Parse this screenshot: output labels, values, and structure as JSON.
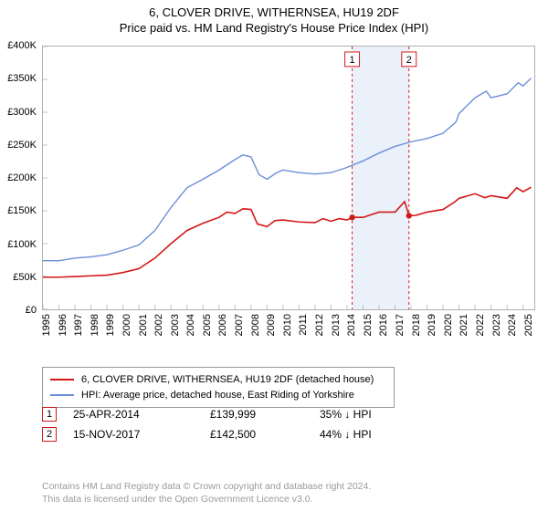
{
  "title": {
    "line1": "6, CLOVER DRIVE, WITHERNSEA, HU19 2DF",
    "line2": "Price paid vs. HM Land Registry's House Price Index (HPI)"
  },
  "chart": {
    "type": "line",
    "background_color": "#ffffff",
    "axis_color": "#b0b0b0",
    "tick_color": "#c0c0c0",
    "xlim": [
      1995,
      2025.7
    ],
    "ylim": [
      0,
      400000
    ],
    "ytick_step": 50000,
    "yticks": [
      "£0",
      "£50K",
      "£100K",
      "£150K",
      "£200K",
      "£250K",
      "£300K",
      "£350K",
      "£400K"
    ],
    "xticks": [
      "1995",
      "1996",
      "1997",
      "1998",
      "1999",
      "2000",
      "2001",
      "2002",
      "2003",
      "2004",
      "2005",
      "2006",
      "2007",
      "2008",
      "2009",
      "2010",
      "2011",
      "2012",
      "2013",
      "2014",
      "2015",
      "2016",
      "2017",
      "2018",
      "2019",
      "2020",
      "2021",
      "2022",
      "2023",
      "2024",
      "2025"
    ],
    "highlight_band": {
      "from": 2014.32,
      "to": 2017.87,
      "fill": "#eaf1fb"
    },
    "sale_markers": [
      {
        "num": "1",
        "x": 2014.32,
        "y": 139999,
        "color": "#d31717"
      },
      {
        "num": "2",
        "x": 2017.87,
        "y": 142500,
        "color": "#d31717"
      }
    ],
    "marker_line_dash": "3,3",
    "marker_label_box_border": "#d31717",
    "series": [
      {
        "name": "property",
        "color": "#d31717",
        "width": 1.6,
        "data": [
          [
            1995,
            49000
          ],
          [
            1996,
            49000
          ],
          [
            1997,
            50000
          ],
          [
            1998,
            51000
          ],
          [
            1999,
            52000
          ],
          [
            2000,
            56000
          ],
          [
            2001,
            62000
          ],
          [
            2002,
            78000
          ],
          [
            2003,
            100000
          ],
          [
            2004,
            120000
          ],
          [
            2005,
            131000
          ],
          [
            2006,
            140000
          ],
          [
            2006.5,
            148000
          ],
          [
            2007,
            146000
          ],
          [
            2007.5,
            153000
          ],
          [
            2008,
            152000
          ],
          [
            2008.4,
            130000
          ],
          [
            2009,
            126000
          ],
          [
            2009.5,
            135000
          ],
          [
            2010,
            136000
          ],
          [
            2011,
            133000
          ],
          [
            2012,
            132000
          ],
          [
            2012.5,
            138000
          ],
          [
            2013,
            134000
          ],
          [
            2013.5,
            138000
          ],
          [
            2014,
            136000
          ],
          [
            2014.32,
            139999
          ],
          [
            2015,
            140000
          ],
          [
            2016,
            148000
          ],
          [
            2017,
            148000
          ],
          [
            2017.6,
            164000
          ],
          [
            2017.87,
            142500
          ],
          [
            2018.3,
            143000
          ],
          [
            2019,
            148000
          ],
          [
            2020,
            152000
          ],
          [
            2020.7,
            163000
          ],
          [
            2021,
            169000
          ],
          [
            2022,
            176000
          ],
          [
            2022.6,
            170000
          ],
          [
            2023,
            173000
          ],
          [
            2024,
            169000
          ],
          [
            2024.6,
            185000
          ],
          [
            2025,
            179000
          ],
          [
            2025.5,
            186000
          ]
        ]
      },
      {
        "name": "hpi",
        "color": "#6a8fd8",
        "width": 1.4,
        "data": [
          [
            1995,
            74000
          ],
          [
            1996,
            74000
          ],
          [
            1997,
            78000
          ],
          [
            1998,
            80000
          ],
          [
            1999,
            83000
          ],
          [
            2000,
            90000
          ],
          [
            2001,
            98000
          ],
          [
            2002,
            120000
          ],
          [
            2003,
            155000
          ],
          [
            2004,
            185000
          ],
          [
            2005,
            198000
          ],
          [
            2006,
            212000
          ],
          [
            2007,
            228000
          ],
          [
            2007.5,
            235000
          ],
          [
            2008,
            232000
          ],
          [
            2008.5,
            205000
          ],
          [
            2009,
            198000
          ],
          [
            2009.6,
            208000
          ],
          [
            2010,
            212000
          ],
          [
            2011,
            208000
          ],
          [
            2012,
            206000
          ],
          [
            2013,
            208000
          ],
          [
            2014,
            216000
          ],
          [
            2015,
            226000
          ],
          [
            2016,
            238000
          ],
          [
            2017,
            248000
          ],
          [
            2018,
            255000
          ],
          [
            2019,
            260000
          ],
          [
            2020,
            268000
          ],
          [
            2020.8,
            285000
          ],
          [
            2021,
            298000
          ],
          [
            2022,
            322000
          ],
          [
            2022.7,
            332000
          ],
          [
            2023,
            322000
          ],
          [
            2024,
            328000
          ],
          [
            2024.7,
            345000
          ],
          [
            2025,
            340000
          ],
          [
            2025.5,
            352000
          ]
        ]
      }
    ]
  },
  "legend": {
    "items": [
      {
        "color": "#d31717",
        "label": "6, CLOVER DRIVE, WITHERNSEA, HU19 2DF (detached house)"
      },
      {
        "color": "#6a8fd8",
        "label": "HPI: Average price, detached house, East Riding of Yorkshire"
      }
    ]
  },
  "sales": [
    {
      "num": "1",
      "date": "25-APR-2014",
      "price": "£139,999",
      "delta": "35% ↓ HPI",
      "box_color": "#d31717"
    },
    {
      "num": "2",
      "date": "15-NOV-2017",
      "price": "£142,500",
      "delta": "44% ↓ HPI",
      "box_color": "#d31717"
    }
  ],
  "footer": {
    "line1": "Contains HM Land Registry data © Crown copyright and database right 2024.",
    "line2": "This data is licensed under the Open Government Licence v3.0."
  }
}
